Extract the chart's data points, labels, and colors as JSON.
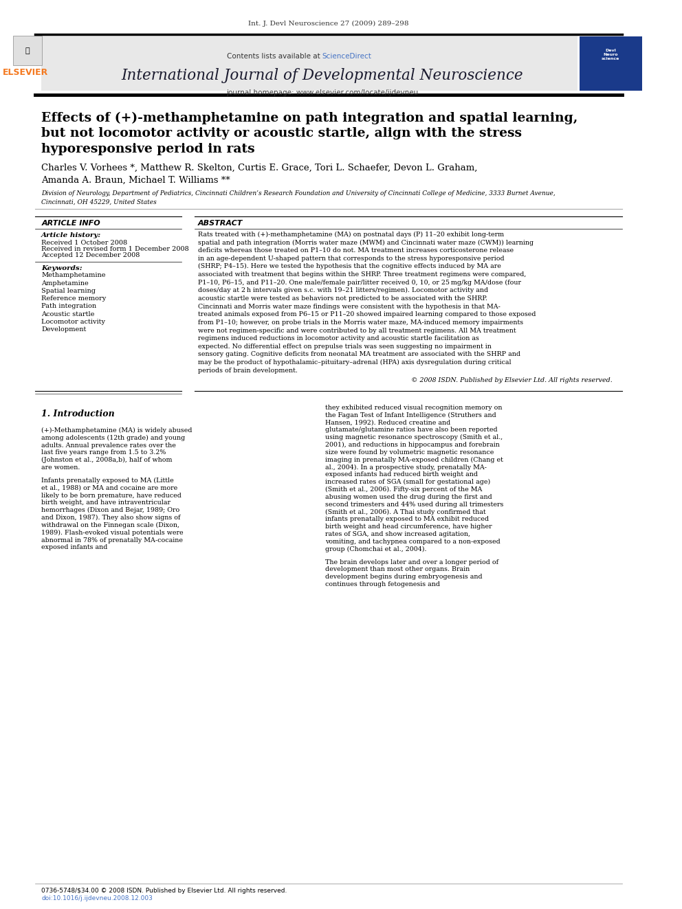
{
  "journal_ref": "Int. J. Devl Neuroscience 27 (2009) 289–298",
  "contents_text": "Contents lists available at ",
  "sciencedirect_text": "ScienceDirect",
  "journal_name": "International Journal of Developmental Neuroscience",
  "journal_homepage": "journal homepage: www.elsevier.com/locate/ijdevneu",
  "title_line1": "Effects of (+)-methamphetamine on path integration and spatial learning,",
  "title_line2": "but not locomotor activity or acoustic startle, align with the stress",
  "title_line3": "hyporesponsive period in rats",
  "authors": "Charles V. Vorhees *, Matthew R. Skelton, Curtis E. Grace, Tori L. Schaefer, Devon L. Graham,",
  "authors2": "Amanda A. Braun, Michael T. Williams **",
  "affiliation": "Division of Neurology, Department of Pediatrics, Cincinnati Children’s Research Foundation and University of Cincinnati College of Medicine, 3333 Burnet Avenue,",
  "affiliation2": "Cincinnati, OH 45229, United States",
  "article_info_title": "ARTICLE INFO",
  "abstract_title": "ABSTRACT",
  "article_history_title": "Article history:",
  "received1": "Received 1 October 2008",
  "revised": "Received in revised form 1 December 2008",
  "accepted": "Accepted 12 December 2008",
  "keywords_title": "Keywords:",
  "keywords": [
    "Methamphetamine",
    "Amphetamine",
    "Spatial learning",
    "Reference memory",
    "Path integration",
    "Acoustic startle",
    "Locomotor activity",
    "Development"
  ],
  "abstract_text": "Rats treated with (+)-methamphetamine (MA) on postnatal days (P) 11–20 exhibit long-term spatial and path integration (Morris water maze (MWM) and Cincinnati water maze (CWM)) learning deficits whereas those treated on P1–10 do not. MA treatment increases corticosterone release in an age-dependent U-shaped pattern that corresponds to the stress hyporesponsive period (SHRP; P4–15). Here we tested the hypothesis that the cognitive effects induced by MA are associated with treatment that begins within the SHRP. Three treatment regimens were compared, P1–10, P6–15, and P11–20. One male/female pair/litter received 0, 10, or 25 mg/kg MA/dose (four doses/day at 2 h intervals given s.c. with 19–21 litters/regimen). Locomotor activity and acoustic startle were tested as behaviors not predicted to be associated with the SHRP. Cincinnati and Morris water maze findings were consistent with the hypothesis in that MA-treated animals exposed from P6–15 or P11–20 showed impaired learning compared to those exposed from P1–10; however, on probe trials in the Morris water maze, MA-induced memory impairments were not regimen-specific and were contributed to by all treatment regimens. All MA treatment regimens induced reductions in locomotor activity and acoustic startle facilitation as expected. No differential effect on prepulse trials was seen suggesting no impairment in sensory gating. Cognitive deficits from neonatal MA treatment are associated with the SHRP and may be the product of hypothalamic–pituitary–adrenal (HPA) axis dysregulation during critical periods of brain development.",
  "copyright": "© 2008 ISDN. Published by Elsevier Ltd. All rights reserved.",
  "intro_title": "1. Introduction",
  "intro_text1": "(+)-Methamphetamine (MA) is widely abused among adolescents (12th grade) and young adults. Annual prevalence rates over the last five years range from 1.5 to 3.2% (Johnston et al., 2008a,b), half of whom are women.",
  "intro_text2": "Infants prenatally exposed to MA (Little et al., 1988) or MA and cocaine are more likely to be born premature, have reduced birth weight, and have intraventricular hemorrhages (Dixon and Bejar, 1989; Oro and Dixon, 1987). They also show signs of withdrawal on the Finnegan scale (Dixon, 1989). Flash-evoked visual potentials were abnormal in 78% of prenatally MA-cocaine exposed infants and",
  "right_col_text": "they exhibited reduced visual recognition memory on the Fagan Test of Infant Intelligence (Struthers and Hansen, 1992). Reduced creatine and glutamate/glutamine ratios have also been reported using magnetic resonance spectroscopy (Smith et al., 2001), and reductions in hippocampus and forebrain size were found by volumetric magnetic resonance imaging in prenatally MA-exposed children (Chang et al., 2004). In a prospective study, prenatally MA-exposed infants had reduced birth weight and increased rates of SGA (small for gestational age) (Smith et al., 2006). Fifty-six percent of the MA abusing women used the drug during the first and second trimesters and 44% used during all trimesters (Smith et al., 2006). A Thai study confirmed that infants prenatally exposed to MA exhibit reduced birth weight and head circumference, have higher rates of SGA, and show increased agitation, vomiting, and tachypnea compared to a non-exposed group (Chomchai et al., 2004).",
  "right_col_text2": "The brain develops later and over a longer period of development than most other organs. Brain development begins during embryogenesis and continues through fetogenesis and",
  "footer_text": "0736-5748/$34.00 © 2008 ISDN. Published by Elsevier Ltd. All rights reserved.",
  "footer_doi": "doi:10.1016/j.ijdevneu.2008.12.003",
  "bg_header": "#e8e8e8",
  "color_sciencedirect": "#4472c4",
  "color_elsevier_orange": "#f47920",
  "color_black": "#000000",
  "color_darkblue": "#1a3a6b",
  "color_link": "#4472c4",
  "color_white": "#ffffff",
  "color_light_gray": "#f0f0f0"
}
